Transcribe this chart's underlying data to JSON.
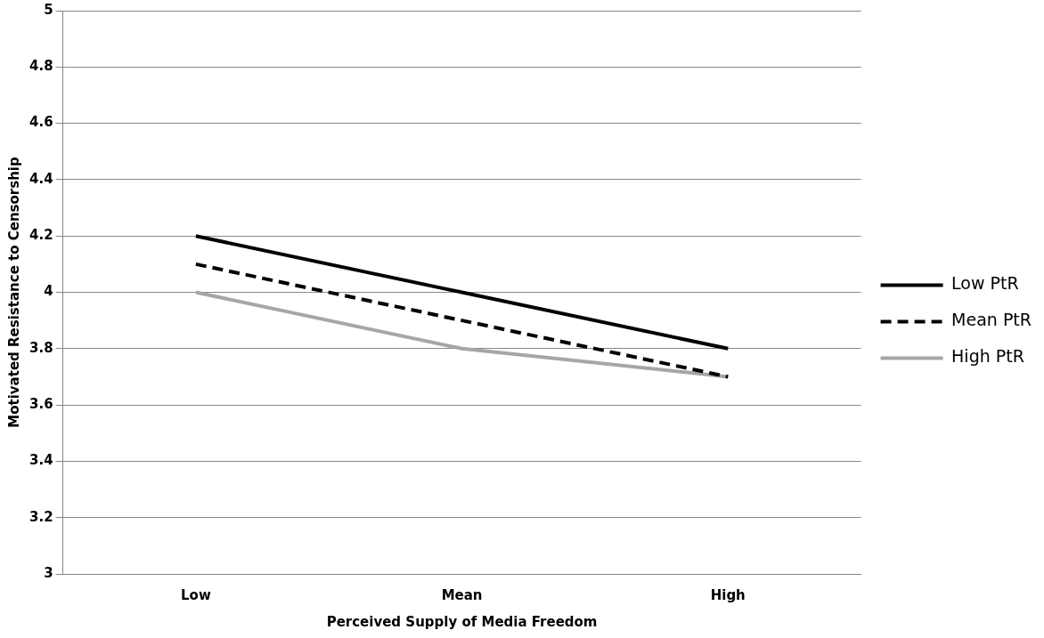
{
  "chart_data": {
    "type": "line",
    "xlabel": "Perceived Supply of Media Freedom",
    "ylabel": "Motivated Resistance to Censorship",
    "categories": [
      "Low",
      "Mean",
      "High"
    ],
    "series": [
      {
        "name": "Low PtR",
        "color": "#000000",
        "line_style": "solid",
        "values": [
          4.2,
          4.0,
          3.8
        ]
      },
      {
        "name": "Mean PtR",
        "color": "#000000",
        "line_style": "dashed",
        "values": [
          4.1,
          3.9,
          3.7
        ]
      },
      {
        "name": "High PtR",
        "color": "#a6a6a6",
        "line_style": "solid",
        "values": [
          4.0,
          3.8,
          3.7
        ]
      }
    ],
    "ylim": [
      3,
      5
    ],
    "yticks": [
      3,
      3.2,
      3.4,
      3.6,
      3.8,
      4,
      4.2,
      4.4,
      4.6,
      4.8,
      5
    ],
    "grid": "y",
    "legend": "right",
    "marker": "none"
  }
}
